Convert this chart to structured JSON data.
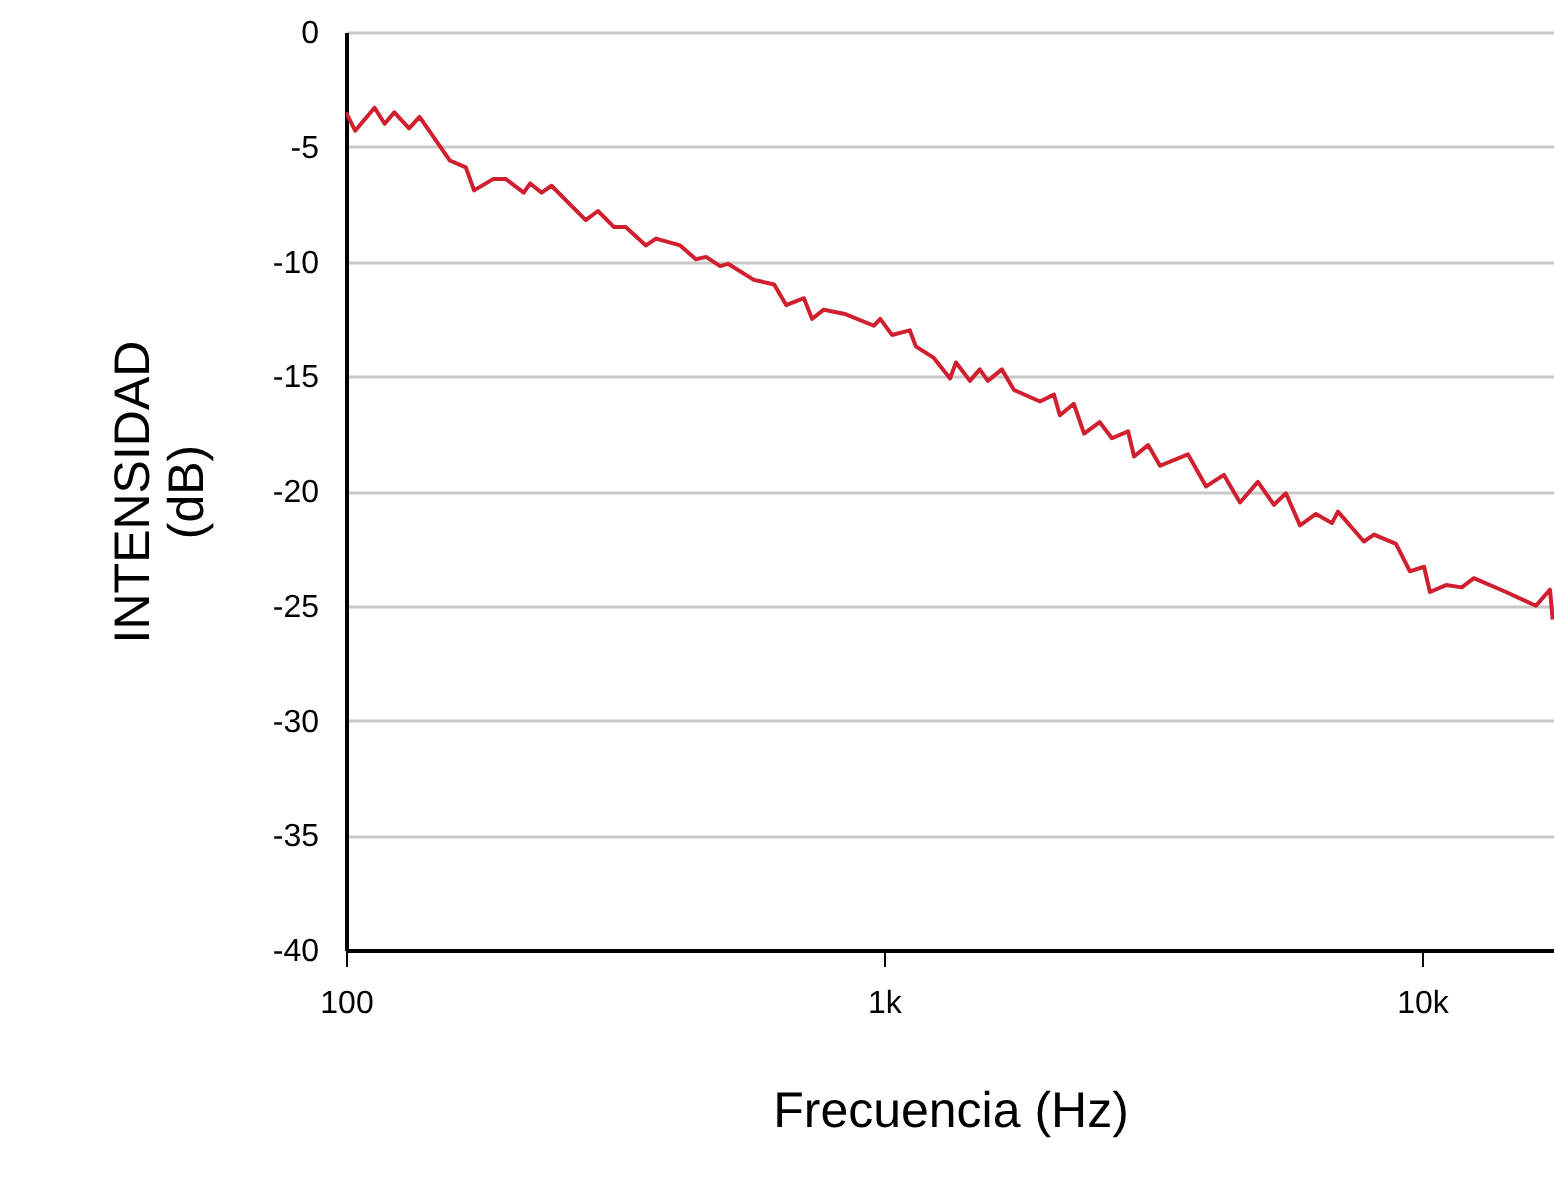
{
  "chart_data": {
    "type": "line",
    "xlabel": "Frecuencia (Hz)",
    "ylabel": "INTENSIDAD (dB)",
    "log": "x",
    "grid": "y",
    "xlim": [
      100,
      17600
    ],
    "ylim": [
      -40,
      0
    ],
    "xticks": [
      {
        "value": 100,
        "label": "100"
      },
      {
        "value": 1000,
        "label": "1k"
      },
      {
        "value": 10000,
        "label": "10k"
      }
    ],
    "yticks": [
      -40,
      -35,
      -30,
      -25,
      -20,
      -15,
      -10,
      -5,
      0
    ],
    "x": [
      100,
      104,
      113,
      118,
      123,
      131,
      137,
      156,
      167,
      173,
      188,
      198,
      214,
      220,
      231,
      241,
      279,
      294,
      315,
      331,
      361,
      377,
      418,
      447,
      467,
      496,
      513,
      573,
      625,
      658,
      710,
      735,
      773,
      850,
      958,
      984,
      1035,
      1117,
      1146,
      1238,
      1327,
      1361,
      1445,
      1507,
      1560,
      1656,
      1745,
      1950,
      2070,
      2123,
      2254,
      2355,
      2518,
      2653,
      2843,
      2917,
      3097,
      3260,
      3673,
      3970,
      4285,
      4590,
      4955,
      5308,
      5588,
      5934,
      6355,
      6803,
      6981,
      7800,
      8147,
      8950,
      9500,
      10090,
      10350,
      11090,
      11860,
      12490,
      14330,
      16290,
      17300,
      17500
    ],
    "series": [
      {
        "color": "#d0202f",
        "values": [
          -3.5,
          -4.3,
          -3.3,
          -4.0,
          -3.5,
          -4.2,
          -3.7,
          -5.6,
          -5.9,
          -6.9,
          -6.4,
          -6.4,
          -7.0,
          -6.6,
          -7.0,
          -6.7,
          -8.2,
          -7.8,
          -8.5,
          -8.5,
          -9.3,
          -9.0,
          -9.3,
          -9.9,
          -9.8,
          -10.2,
          -10.1,
          -10.8,
          -11.0,
          -11.9,
          -11.6,
          -12.5,
          -12.1,
          -12.3,
          -12.8,
          -12.5,
          -13.2,
          -13.0,
          -13.7,
          -14.2,
          -15.1,
          -14.4,
          -15.2,
          -14.7,
          -15.2,
          -14.7,
          -15.6,
          -16.1,
          -15.8,
          -16.7,
          -16.2,
          -17.5,
          -17.0,
          -17.7,
          -17.4,
          -18.5,
          -18.0,
          -18.9,
          -18.4,
          -19.8,
          -19.3,
          -20.5,
          -19.6,
          -20.6,
          -20.1,
          -21.5,
          -21.0,
          -21.4,
          -20.9,
          -22.2,
          -21.9,
          -22.3,
          -23.5,
          -23.3,
          -24.4,
          -24.1,
          -24.2,
          -23.8,
          -24.4,
          -25.0,
          -24.3,
          -25.6
        ]
      }
    ]
  }
}
